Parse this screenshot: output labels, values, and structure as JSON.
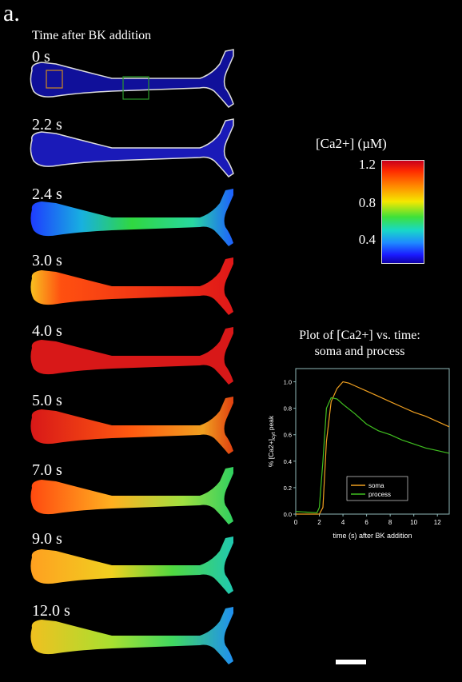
{
  "panel_letter": "a.",
  "heading": "Time after BK addition",
  "frames": [
    {
      "label": "0 s"
    },
    {
      "label": "2.2 s"
    },
    {
      "label": "2.4 s"
    },
    {
      "label": "3.0 s"
    },
    {
      "label": "4.0 s"
    },
    {
      "label": "5.0 s"
    },
    {
      "label": "7.0 s"
    },
    {
      "label": "9.0 s"
    },
    {
      "label": "12.0 s"
    }
  ],
  "colorbar": {
    "title": "[Ca2+] (µM)",
    "ticks": [
      "1.2",
      "0.8",
      "0.4"
    ],
    "colors": [
      "#c8001c",
      "#ff8a00",
      "#f5e800",
      "#3ee13a",
      "#1e8cff",
      "#1000a8"
    ]
  },
  "plot_title_line1": "Plot of [Ca2+] vs. time:",
  "plot_title_line2": "soma and process",
  "chart_data": {
    "type": "line",
    "xlabel": "time (s) after BK addition",
    "ylabel": "% [Ca2+]cyt peak",
    "xlim": [
      0,
      13
    ],
    "ylim": [
      0,
      1.1
    ],
    "xticks": [
      0,
      2,
      4,
      6,
      8,
      10,
      12
    ],
    "yticks": [
      0.0,
      0.2,
      0.4,
      0.6,
      0.8,
      1.0
    ],
    "legend": "bottom-center",
    "series": [
      {
        "name": "soma",
        "color": "#f0a020",
        "x": [
          0,
          2.0,
          2.3,
          2.6,
          3.0,
          3.5,
          4.0,
          4.5,
          5.0,
          6.0,
          7.0,
          8.0,
          9.0,
          10.0,
          11.0,
          12.0,
          13.0
        ],
        "y": [
          0.0,
          0.0,
          0.05,
          0.55,
          0.85,
          0.95,
          1.0,
          0.99,
          0.97,
          0.93,
          0.89,
          0.85,
          0.81,
          0.77,
          0.74,
          0.7,
          0.66
        ]
      },
      {
        "name": "process",
        "color": "#40c020",
        "x": [
          0,
          1.8,
          2.0,
          2.3,
          2.6,
          3.0,
          3.5,
          4.0,
          5.0,
          6.0,
          7.0,
          8.0,
          9.0,
          10.0,
          11.0,
          12.0,
          13.0
        ],
        "y": [
          0.02,
          0.01,
          0.05,
          0.4,
          0.8,
          0.88,
          0.87,
          0.83,
          0.76,
          0.68,
          0.63,
          0.6,
          0.56,
          0.53,
          0.5,
          0.48,
          0.46
        ]
      }
    ]
  }
}
